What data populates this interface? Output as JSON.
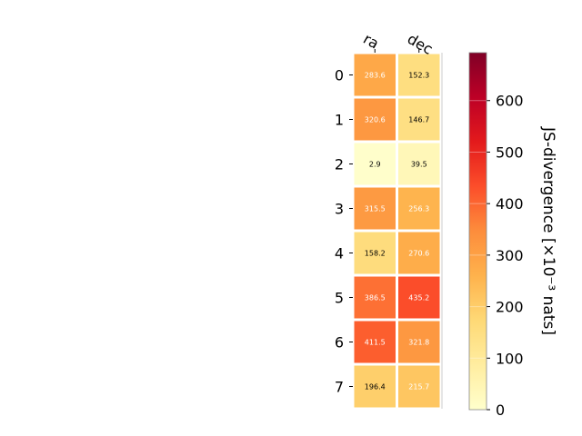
{
  "chart_data": {
    "type": "heatmap",
    "title": "",
    "columns": [
      "ra",
      "dec"
    ],
    "rows": [
      "0",
      "1",
      "2",
      "3",
      "4",
      "5",
      "6",
      "7"
    ],
    "values": [
      [
        283.6,
        152.3
      ],
      [
        320.6,
        146.7
      ],
      [
        2.9,
        39.5
      ],
      [
        315.5,
        256.3
      ],
      [
        158.2,
        270.6
      ],
      [
        386.5,
        435.2
      ],
      [
        411.5,
        321.8
      ],
      [
        196.4,
        215.7
      ]
    ],
    "value_labels": [
      [
        "283.6",
        "152.3"
      ],
      [
        "320.6",
        "146.7"
      ],
      [
        "2.9",
        "39.5"
      ],
      [
        "315.5",
        "256.3"
      ],
      [
        "158.2",
        "270.6"
      ],
      [
        "386.5",
        "435.2"
      ],
      [
        "411.5",
        "321.8"
      ],
      [
        "196.4",
        "215.7"
      ]
    ],
    "colorbar": {
      "label": "JS-divergence [×10⁻³ nats]",
      "range": [
        0,
        693
      ],
      "ticks": [
        "0",
        "100",
        "200",
        "300",
        "400",
        "500",
        "600"
      ],
      "tick_values": [
        0,
        100,
        200,
        300,
        400,
        500,
        600
      ],
      "colormap": "YlOrRd"
    }
  }
}
